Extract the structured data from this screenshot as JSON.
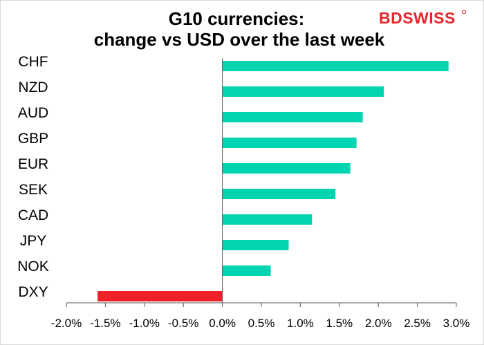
{
  "title_line1": "G10 currencies:",
  "title_line2": "change vs USD over the last week",
  "logo": {
    "text": "BDSWISS"
  },
  "colors": {
    "positive": "#00d4b0",
    "negative": "#ee2028",
    "logo_text": "#e8252b"
  },
  "chart_data": {
    "type": "bar",
    "orientation": "horizontal",
    "categories": [
      "CHF",
      "NZD",
      "AUD",
      "GBP",
      "EUR",
      "SEK",
      "CAD",
      "JPY",
      "NOK",
      "DXY"
    ],
    "values": [
      2.9,
      2.07,
      1.8,
      1.72,
      1.64,
      1.45,
      1.15,
      0.85,
      0.62,
      -1.6
    ],
    "xlim": [
      -2.0,
      3.0
    ],
    "x_ticks": [
      "-2.0%",
      "-1.5%",
      "-1.0%",
      "-0.5%",
      "0.0%",
      "0.5%",
      "1.0%",
      "1.5%",
      "2.0%",
      "2.5%",
      "3.0%"
    ],
    "unit": "%",
    "grid": false
  }
}
